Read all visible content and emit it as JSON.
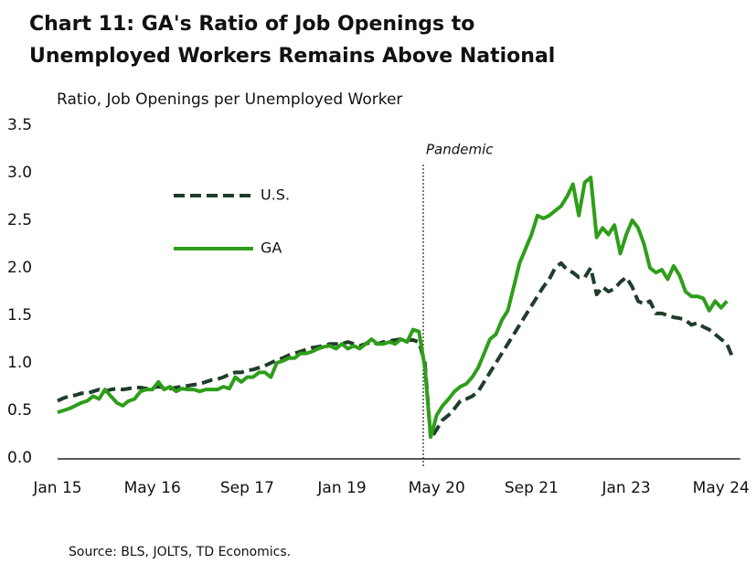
{
  "chart_data": {
    "type": "line",
    "title": "Chart 11: GA's Ratio of Job Openings to",
    "title_line2": "Unemployed Workers Remains Above National",
    "y_axis_label": "Ratio, Job Openings per Unemployed Worker",
    "source": "Source: BLS, JOLTS, TD Economics.",
    "annotation": "Pandemic",
    "categories": [
      "Jan 15",
      null,
      null,
      null,
      null,
      null,
      null,
      null,
      null,
      null,
      null,
      null,
      null,
      null,
      null,
      null,
      "May 16",
      null,
      null,
      null,
      null,
      null,
      null,
      null,
      null,
      null,
      null,
      null,
      null,
      null,
      null,
      null,
      "Sep 17",
      null,
      null,
      null,
      null,
      null,
      null,
      null,
      null,
      null,
      null,
      null,
      null,
      null,
      null,
      null,
      "Jan 19",
      null,
      null,
      null,
      null,
      null,
      null,
      null,
      null,
      null,
      null,
      null,
      null,
      null,
      null,
      null,
      "May 20",
      null,
      null,
      null,
      null,
      null,
      null,
      null,
      null,
      null,
      null,
      null,
      null,
      null,
      null,
      null,
      "Sep 21",
      null,
      null,
      null,
      null,
      null,
      null,
      null,
      null,
      null,
      null,
      null,
      null,
      null,
      null,
      null,
      "Jan 23",
      null,
      null,
      null,
      null,
      null,
      null,
      null,
      null,
      null,
      null,
      null,
      null,
      null,
      null,
      null,
      "May 24",
      null,
      null
    ],
    "series": [
      {
        "name": "U.S.",
        "color": "#1f3d2b",
        "dashed": true,
        "values": [
          0.6,
          0.63,
          0.65,
          0.66,
          0.68,
          0.68,
          0.7,
          0.72,
          0.7,
          0.72,
          0.73,
          0.72,
          0.73,
          0.74,
          0.74,
          0.73,
          0.74,
          0.75,
          0.74,
          0.73,
          0.74,
          0.75,
          0.76,
          0.77,
          0.78,
          0.8,
          0.82,
          0.83,
          0.85,
          0.88,
          0.9,
          0.9,
          0.92,
          0.93,
          0.95,
          0.97,
          1.0,
          1.03,
          1.05,
          1.08,
          1.1,
          1.12,
          1.14,
          1.16,
          1.17,
          1.18,
          1.2,
          1.2,
          1.2,
          1.22,
          1.2,
          1.18,
          1.2,
          1.22,
          1.2,
          1.22,
          1.23,
          1.24,
          1.25,
          1.24,
          1.24,
          1.22,
          1.0,
          0.2,
          0.3,
          0.4,
          0.45,
          0.52,
          0.6,
          0.62,
          0.65,
          0.7,
          0.8,
          0.9,
          1.0,
          1.1,
          1.2,
          1.3,
          1.4,
          1.5,
          1.6,
          1.7,
          1.8,
          1.88,
          2.0,
          2.05,
          1.98,
          1.95,
          1.9,
          1.9,
          2.0,
          1.72,
          1.8,
          1.75,
          1.78,
          1.85,
          1.9,
          1.8,
          1.65,
          1.62,
          1.65,
          1.52,
          1.52,
          1.5,
          1.48,
          1.47,
          1.45,
          1.4,
          1.42,
          1.38,
          1.35,
          1.3,
          1.25,
          1.2,
          1.05
        ]
      },
      {
        "name": "GA",
        "color": "#2e9e1a",
        "dashed": false,
        "values": [
          0.48,
          0.5,
          0.52,
          0.55,
          0.58,
          0.6,
          0.65,
          0.62,
          0.72,
          0.65,
          0.58,
          0.55,
          0.6,
          0.62,
          0.7,
          0.72,
          0.72,
          0.8,
          0.72,
          0.75,
          0.7,
          0.73,
          0.72,
          0.72,
          0.7,
          0.72,
          0.72,
          0.72,
          0.75,
          0.73,
          0.85,
          0.8,
          0.85,
          0.85,
          0.9,
          0.9,
          0.85,
          1.0,
          1.02,
          1.05,
          1.05,
          1.1,
          1.1,
          1.12,
          1.15,
          1.17,
          1.18,
          1.15,
          1.2,
          1.15,
          1.18,
          1.15,
          1.2,
          1.25,
          1.2,
          1.2,
          1.22,
          1.2,
          1.25,
          1.22,
          1.35,
          1.33,
          0.95,
          0.22,
          0.45,
          0.55,
          0.62,
          0.7,
          0.75,
          0.78,
          0.85,
          0.95,
          1.1,
          1.25,
          1.3,
          1.45,
          1.55,
          1.8,
          2.05,
          2.2,
          2.35,
          2.55,
          2.52,
          2.55,
          2.6,
          2.65,
          2.75,
          2.88,
          2.55,
          2.9,
          2.95,
          2.32,
          2.42,
          2.35,
          2.45,
          2.15,
          2.35,
          2.5,
          2.42,
          2.25,
          2.0,
          1.95,
          1.98,
          1.88,
          2.02,
          1.92,
          1.75,
          1.7,
          1.7,
          1.68,
          1.55,
          1.65,
          1.58,
          1.65,
          null
        ]
      }
    ],
    "ylim": [
      0,
      3.5
    ],
    "yticks": [
      {
        "value": 0,
        "label": "0.0"
      },
      0.5,
      {
        "value": 1,
        "label": "1.0"
      },
      1.5,
      {
        "value": 2,
        "label": "2.0"
      },
      2.5,
      {
        "value": 3,
        "label": "3.0"
      },
      3.5
    ],
    "grid": false
  }
}
